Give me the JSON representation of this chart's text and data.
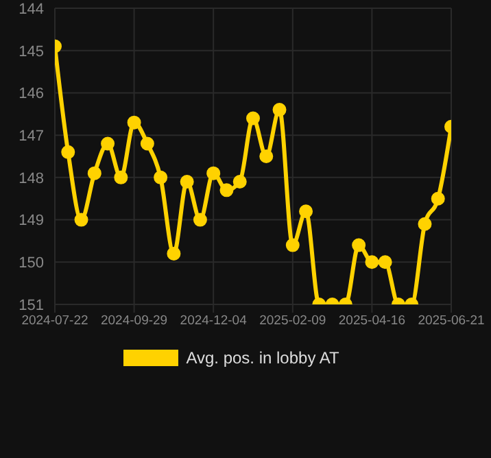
{
  "chart_data": {
    "type": "line",
    "categories": [
      "2024-07-22",
      null,
      null,
      null,
      null,
      null,
      "2024-09-29",
      null,
      null,
      null,
      null,
      null,
      "2024-12-04",
      null,
      null,
      null,
      null,
      null,
      "2025-02-09",
      null,
      null,
      null,
      null,
      null,
      "2025-04-16",
      null,
      null,
      null,
      null,
      null,
      "2025-06-21"
    ],
    "series": [
      {
        "name": "Avg. pos. in lobby AT",
        "color": "#ffd200",
        "values": [
          144.9,
          147.4,
          149.0,
          147.9,
          147.2,
          148.0,
          146.7,
          147.2,
          148.0,
          149.8,
          148.1,
          149.0,
          147.9,
          148.3,
          148.1,
          146.6,
          147.5,
          146.4,
          149.6,
          148.8,
          151.0,
          151.0,
          151.0,
          149.6,
          150.0,
          150.0,
          151.0,
          151.0,
          149.1,
          148.5,
          146.8
        ]
      }
    ],
    "ylim": [
      151,
      144
    ],
    "yticks": [
      144,
      145,
      146,
      147,
      148,
      149,
      150,
      151
    ],
    "grid": true,
    "legend": "bottom",
    "marker": "circle",
    "line_style": "solid"
  }
}
